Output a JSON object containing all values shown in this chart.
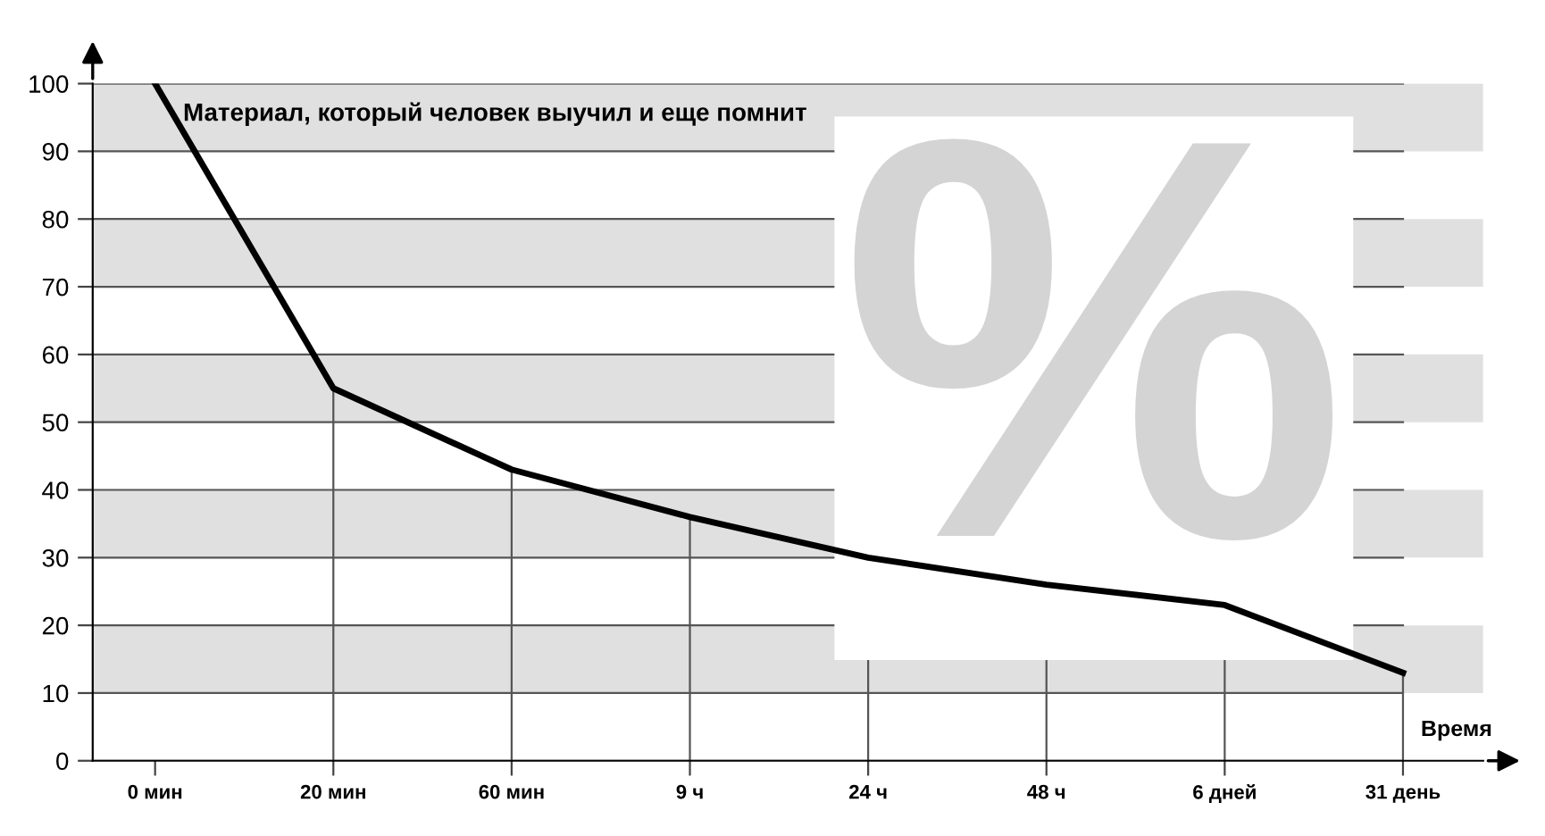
{
  "chart_data": {
    "type": "line",
    "title": "Материал, который человек выучил и еще помнит",
    "xlabel": "Время",
    "categories": [
      "0 мин",
      "20 мин",
      "60 мин",
      "9 ч",
      "24 ч",
      "48 ч",
      "6 дней",
      "31 день"
    ],
    "series": [
      {
        "color": "#000000",
        "values": [
          100,
          55,
          43,
          36,
          30,
          26,
          23,
          13
        ]
      }
    ],
    "ylim": [
      0,
      100
    ],
    "yticks": [
      0,
      10,
      20,
      30,
      40,
      50,
      60,
      70,
      80,
      90,
      100
    ],
    "grid": "y",
    "marker": "none",
    "line_style": "solid",
    "bands": [
      {
        "axis": "y",
        "from": 10,
        "to": 20,
        "color": "#e0e0e0"
      },
      {
        "axis": "y",
        "from": 30,
        "to": 40,
        "color": "#e0e0e0"
      },
      {
        "axis": "y",
        "from": 50,
        "to": 60,
        "color": "#e0e0e0"
      },
      {
        "axis": "y",
        "from": 70,
        "to": 80,
        "color": "#e0e0e0"
      },
      {
        "axis": "y",
        "from": 90,
        "to": 100,
        "color": "#e0e0e0"
      }
    ],
    "annotations": [
      "%"
    ]
  }
}
